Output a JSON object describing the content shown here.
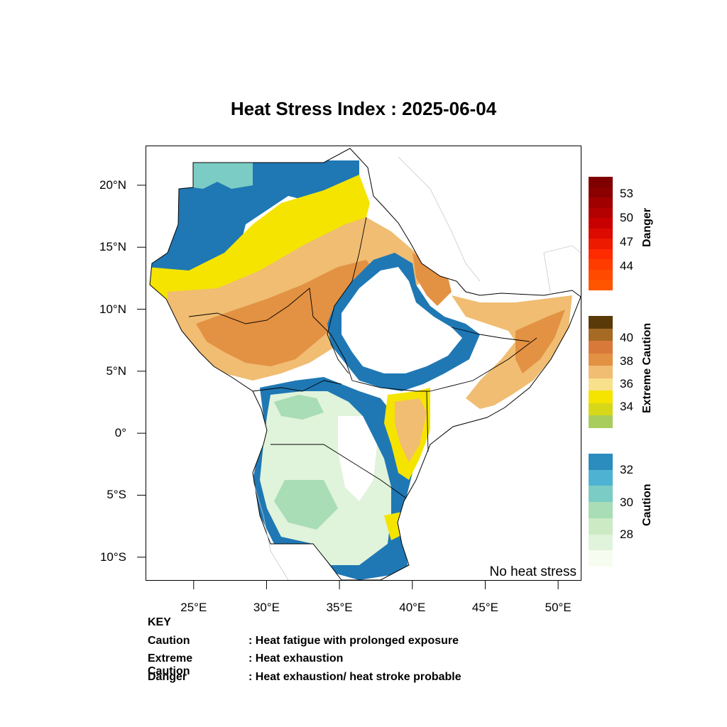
{
  "title": "Heat Stress Index : 2025-06-04",
  "lat_ticks": [
    {
      "label": "20°N",
      "lat": 20
    },
    {
      "label": "15°N",
      "lat": 15
    },
    {
      "label": "10°N",
      "lat": 10
    },
    {
      "label": "5°N",
      "lat": 5
    },
    {
      "label": "0°",
      "lat": 0
    },
    {
      "label": "5°S",
      "lat": -5
    },
    {
      "label": "10°S",
      "lat": -10
    }
  ],
  "lon_ticks": [
    {
      "label": "25°E",
      "lon": 25
    },
    {
      "label": "30°E",
      "lon": 30
    },
    {
      "label": "35°E",
      "lon": 35
    },
    {
      "label": "40°E",
      "lon": 40
    },
    {
      "label": "45°E",
      "lon": 45
    },
    {
      "label": "50°E",
      "lon": 50
    }
  ],
  "map_extent": {
    "lon_min": 21.7,
    "lon_max": 51.6,
    "lat_min": -11.9,
    "lat_max": 23.2
  },
  "no_heat_stress_label": "No heat stress",
  "legend": {
    "danger": {
      "title": "Danger",
      "colors": [
        "#7f0000",
        "#8b0000",
        "#a00000",
        "#b30000",
        "#c80000",
        "#dc0a00",
        "#ee1a00",
        "#ff2a00",
        "#ff3c00",
        "#ff4a00",
        "#ff5500"
      ],
      "ticks": [
        "53",
        "50",
        "47",
        "44"
      ]
    },
    "extreme_caution": {
      "title": "Extreme Caution",
      "colors": [
        "#5b3a0a",
        "#a66a24",
        "#d8793a",
        "#e39142",
        "#f0bd72",
        "#f9e08c",
        "#f5e400",
        "#d7d81a",
        "#a9cd5c"
      ],
      "ticks": [
        "40",
        "38",
        "36",
        "34"
      ]
    },
    "caution": {
      "title": "Caution",
      "colors": [
        "#2b8cbe",
        "#4eb3d3",
        "#7bccc4",
        "#a8ddb5",
        "#ccebc5",
        "#e0f3db",
        "#f7fcf0"
      ],
      "ticks": [
        "32",
        "30",
        "28"
      ]
    }
  },
  "key": {
    "heading": "KEY",
    "rows": [
      {
        "category": "Caution",
        "description": ": Heat fatigue with prolonged exposure"
      },
      {
        "category": "Extreme Caution",
        "description": " : Heat exhaustion"
      },
      {
        "category": "Danger",
        "description": ": Heat exhaustion/ heat stroke probable"
      }
    ]
  }
}
